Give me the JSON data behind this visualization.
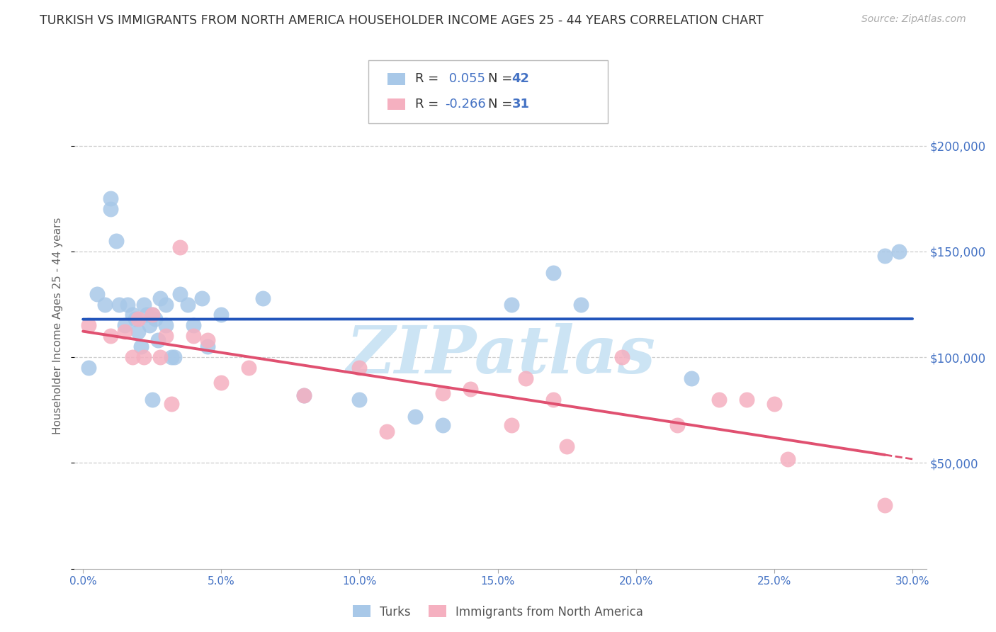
{
  "title": "TURKISH VS IMMIGRANTS FROM NORTH AMERICA HOUSEHOLDER INCOME AGES 25 - 44 YEARS CORRELATION CHART",
  "source": "Source: ZipAtlas.com",
  "ylabel": "Householder Income Ages 25 - 44 years",
  "ytick_labels": [
    "$50,000",
    "$100,000",
    "$150,000",
    "$200,000"
  ],
  "ytick_values": [
    50000,
    100000,
    150000,
    200000
  ],
  "xtick_vals": [
    0.0,
    0.05,
    0.1,
    0.15,
    0.2,
    0.25,
    0.3
  ],
  "xtick_labels": [
    "0.0%",
    "5.0%",
    "10.0%",
    "15.0%",
    "20.0%",
    "25.0%",
    "30.0%"
  ],
  "xlim": [
    -0.003,
    0.305
  ],
  "ylim": [
    0,
    230000
  ],
  "blue_R": 0.055,
  "blue_N": 42,
  "pink_R": -0.266,
  "pink_N": 31,
  "blue_dot_color": "#a8c8e8",
  "pink_dot_color": "#f5b0c0",
  "blue_line_color": "#2255bb",
  "pink_line_color": "#e05070",
  "title_color": "#333333",
  "axis_label_color": "#666666",
  "tick_color": "#4472c4",
  "grid_color": "#cccccc",
  "watermark_color": "#cce4f4",
  "watermark_text": "ZIPatlas",
  "legend_label1": "Turks",
  "legend_label2": "Immigrants from North America",
  "blue_x": [
    0.002,
    0.005,
    0.008,
    0.01,
    0.01,
    0.012,
    0.013,
    0.015,
    0.016,
    0.018,
    0.019,
    0.02,
    0.021,
    0.022,
    0.023,
    0.024,
    0.025,
    0.025,
    0.026,
    0.027,
    0.028,
    0.03,
    0.03,
    0.032,
    0.033,
    0.035,
    0.038,
    0.04,
    0.043,
    0.045,
    0.05,
    0.065,
    0.08,
    0.1,
    0.12,
    0.13,
    0.155,
    0.17,
    0.18,
    0.22,
    0.29,
    0.295
  ],
  "blue_y": [
    95000,
    130000,
    125000,
    170000,
    175000,
    155000,
    125000,
    115000,
    125000,
    120000,
    118000,
    112000,
    105000,
    125000,
    120000,
    115000,
    80000,
    120000,
    118000,
    108000,
    128000,
    125000,
    115000,
    100000,
    100000,
    130000,
    125000,
    115000,
    128000,
    105000,
    120000,
    128000,
    82000,
    80000,
    72000,
    68000,
    125000,
    140000,
    125000,
    90000,
    148000,
    150000
  ],
  "pink_x": [
    0.002,
    0.01,
    0.015,
    0.018,
    0.02,
    0.022,
    0.025,
    0.028,
    0.03,
    0.032,
    0.035,
    0.04,
    0.045,
    0.05,
    0.06,
    0.08,
    0.1,
    0.11,
    0.13,
    0.14,
    0.155,
    0.16,
    0.17,
    0.175,
    0.195,
    0.215,
    0.23,
    0.24,
    0.25,
    0.255,
    0.29
  ],
  "pink_y": [
    115000,
    110000,
    112000,
    100000,
    118000,
    100000,
    120000,
    100000,
    110000,
    78000,
    152000,
    110000,
    108000,
    88000,
    95000,
    82000,
    95000,
    65000,
    83000,
    85000,
    68000,
    90000,
    80000,
    58000,
    100000,
    68000,
    80000,
    80000,
    78000,
    52000,
    30000
  ]
}
